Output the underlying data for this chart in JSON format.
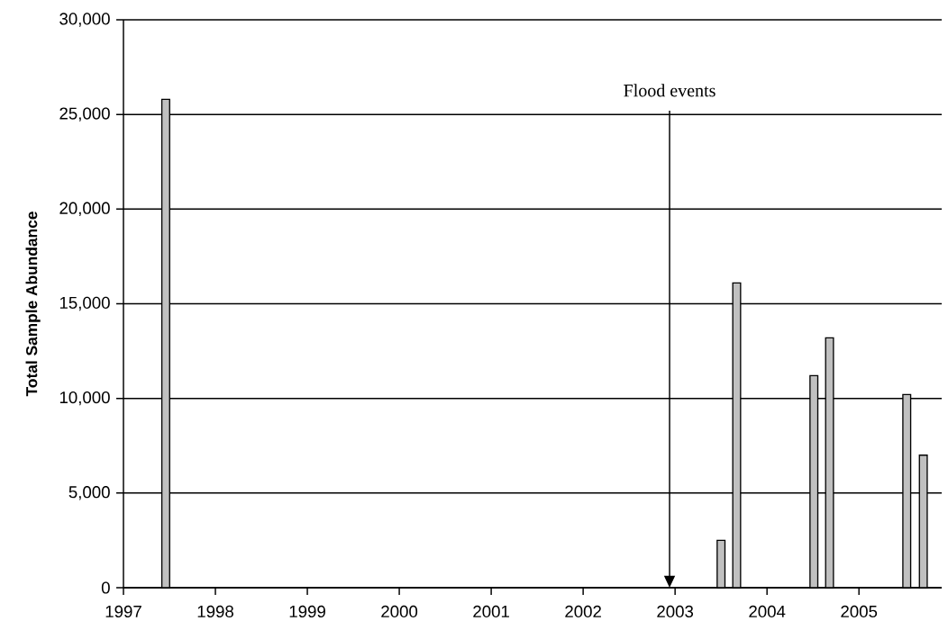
{
  "chart_data": {
    "type": "bar",
    "ylabel": "Total Sample Abundance",
    "x": [
      1997.46,
      2003.5,
      2003.67,
      2004.51,
      2004.68,
      2005.52,
      2005.7
    ],
    "values": [
      25800,
      2500,
      16100,
      11200,
      13200,
      10200,
      7000
    ],
    "color": "#c0c0c0",
    "xlim": [
      1997,
      2005.9
    ],
    "xticks": [
      1997,
      1998,
      1999,
      2000,
      2001,
      2002,
      2003,
      2004,
      2005
    ],
    "ylim": [
      0,
      30000
    ],
    "yticks": [
      0,
      {
        "value": 5000,
        "label": "5,000"
      },
      {
        "value": 10000,
        "label": "10,000"
      },
      {
        "value": 15000,
        "label": "15,000"
      },
      {
        "value": 20000,
        "label": "20,000"
      },
      {
        "value": 25000,
        "label": "25,000"
      },
      {
        "value": 30000,
        "label": "30,000"
      }
    ],
    "grid": "y",
    "ref_lines": [
      {
        "axis": "x",
        "value": 2002.94,
        "label": "Flood events"
      }
    ]
  }
}
